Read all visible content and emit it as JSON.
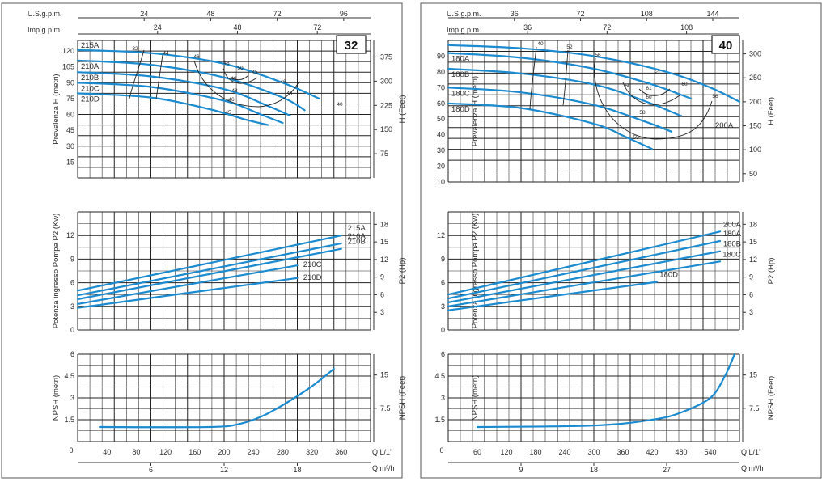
{
  "colors": {
    "curve": "#1a8bd0",
    "grid": "#222222",
    "frame": "#555555"
  },
  "chart_data": [
    {
      "type": "line",
      "panel": "left",
      "model_label": "32",
      "flow_axes": {
        "usgpm": {
          "label": "U.S.g.p.m.",
          "ticks": [
            24,
            48,
            72,
            96
          ]
        },
        "impgpm": {
          "label": "Imp.g.p.m.",
          "ticks": [
            24,
            48,
            72
          ]
        },
        "lmin": {
          "label": "Q  L/1'",
          "ticks": [
            40,
            80,
            120,
            160,
            200,
            240,
            280,
            320,
            360
          ],
          "range": [
            0,
            400
          ]
        },
        "m3h": {
          "label": "Q  m³/h",
          "ticks": [
            6,
            12,
            18
          ]
        }
      },
      "zero_label": "0",
      "head": {
        "ylabel": "Prevalenza H (metri)",
        "ylabel_right": "H (Feet)",
        "yticks": [
          15,
          30,
          45,
          60,
          75,
          90,
          105,
          120
        ],
        "yticks_right": [
          75,
          150,
          225,
          300,
          375
        ],
        "ylim": [
          0,
          130
        ],
        "series": [
          {
            "name": "215A",
            "x": [
              0,
              100,
              200,
              280,
              330
            ],
            "y": [
              121,
              118,
              108,
              90,
              75
            ]
          },
          {
            "name": "210A",
            "x": [
              0,
              100,
              200,
              280,
              310
            ],
            "y": [
              111,
              107,
              95,
              76,
              64
            ]
          },
          {
            "name": "210B",
            "x": [
              0,
              100,
              200,
              260,
              290
            ],
            "y": [
              100,
              96,
              84,
              68,
              59
            ]
          },
          {
            "name": "210C",
            "x": [
              0,
              100,
              200,
              250,
              280
            ],
            "y": [
              90,
              86,
              73,
              60,
              52
            ]
          },
          {
            "name": "210D",
            "x": [
              0,
              100,
              180,
              230,
              260
            ],
            "y": [
              80,
              76,
              65,
              55,
              50
            ]
          }
        ],
        "efficiency_labels": [
          "32",
          "44",
          "46",
          "48",
          "50",
          "49",
          "48",
          "46",
          "45",
          "44",
          "40",
          "46",
          "45"
        ]
      },
      "power": {
        "ylabel": "Potenza ingresso Pompa P2 (Kw)",
        "ylabel_right": "P2 (Hp)",
        "yticks": [
          0,
          3,
          6,
          9,
          12
        ],
        "yticks_right": [
          3,
          6,
          9,
          12,
          15,
          18
        ],
        "ylim": [
          0,
          15
        ],
        "series": [
          {
            "name": "215A",
            "x": [
              0,
              360
            ],
            "y": [
              5.0,
              12.0
            ]
          },
          {
            "name": "210A",
            "x": [
              0,
              360
            ],
            "y": [
              4.4,
              11.0
            ]
          },
          {
            "name": "210B",
            "x": [
              0,
              360
            ],
            "y": [
              3.9,
              10.3
            ]
          },
          {
            "name": "210C",
            "x": [
              0,
              300
            ],
            "y": [
              3.3,
              8.2
            ]
          },
          {
            "name": "210D",
            "x": [
              0,
              300
            ],
            "y": [
              2.8,
              6.6
            ]
          }
        ]
      },
      "npsh": {
        "ylabel": "NPSH (metri)",
        "ylabel_right": "NPSH (Feet)",
        "yticks": [
          1.5,
          3,
          4.5,
          6
        ],
        "yticks_right": [
          7.5,
          15
        ],
        "ylim": [
          0,
          6
        ],
        "series": [
          {
            "name": "NPSH",
            "x": [
              30,
              180,
              220,
              250,
              280,
              320,
              350
            ],
            "y": [
              1.0,
              1.0,
              1.2,
              1.7,
              2.5,
              3.8,
              5.0
            ]
          }
        ]
      }
    },
    {
      "type": "line",
      "panel": "right",
      "model_label": "40",
      "flow_axes": {
        "usgpm": {
          "label": "U.S.g.p.m.",
          "ticks": [
            36,
            72,
            108,
            144
          ]
        },
        "impgpm": {
          "label": "Imp.g.p.m.",
          "ticks": [
            36,
            72,
            108
          ]
        },
        "lmin": {
          "label": "Q  L/1'",
          "ticks": [
            60,
            120,
            180,
            240,
            300,
            360,
            420,
            480,
            540
          ],
          "range": [
            0,
            600
          ]
        },
        "m3h": {
          "label": "Q  m³/h",
          "ticks": [
            9,
            18,
            27
          ]
        }
      },
      "zero_label": "0",
      "head": {
        "ylabel": "Prevalenza H (metri)",
        "ylabel_right": "H (Feet)",
        "yticks": [
          10,
          20,
          30,
          40,
          50,
          60,
          70,
          80,
          90
        ],
        "yticks_right": [
          50,
          100,
          150,
          200,
          250,
          300
        ],
        "ylim": [
          10,
          100
        ],
        "series": [
          {
            "name": "200A",
            "x": [
              0,
              150,
              300,
              450,
              540,
              600
            ],
            "y": [
              97,
              95,
              90,
              80,
              70,
              61
            ]
          },
          {
            "name": "180A",
            "x": [
              0,
              150,
              300,
              420,
              500
            ],
            "y": [
              92,
              89,
              82,
              72,
              63
            ]
          },
          {
            "name": "180B",
            "x": [
              0,
              150,
              300,
              400,
              480
            ],
            "y": [
              82,
              79,
              72,
              62,
              52
            ]
          },
          {
            "name": "180C",
            "x": [
              0,
              150,
              300,
              400,
              460
            ],
            "y": [
              70,
              67,
              59,
              49,
              42
            ]
          },
          {
            "name": "180D",
            "x": [
              0,
              150,
              300,
              370,
              420
            ],
            "y": [
              60,
              57,
              47,
              38,
              31
            ]
          }
        ],
        "efficiency_labels": [
          "40",
          "52",
          "56",
          "60",
          "62",
          "61",
          "60",
          "60",
          "56",
          "58",
          "55"
        ]
      },
      "power": {
        "ylabel": "Potenza ingresso Pompa P2 (Kw)",
        "ylabel_right": "P2 (Hp)",
        "yticks": [
          0,
          3,
          6,
          9,
          12
        ],
        "yticks_right": [
          3,
          6,
          9,
          12,
          15,
          18
        ],
        "ylim": [
          0,
          15
        ],
        "series": [
          {
            "name": "200A",
            "x": [
              0,
              560
            ],
            "y": [
              4.5,
              12.5
            ]
          },
          {
            "name": "180A",
            "x": [
              0,
              560
            ],
            "y": [
              4.0,
              11.3
            ]
          },
          {
            "name": "180B",
            "x": [
              0,
              560
            ],
            "y": [
              3.5,
              10.0
            ]
          },
          {
            "name": "180C",
            "x": [
              0,
              560
            ],
            "y": [
              3.0,
              8.7
            ]
          },
          {
            "name": "180D",
            "x": [
              0,
              430
            ],
            "y": [
              2.5,
              6.1
            ]
          }
        ]
      },
      "npsh": {
        "ylabel": "NPSH (metri)",
        "ylabel_right": "NPSH (Feet)",
        "yticks": [
          1.5,
          3,
          4.5,
          6
        ],
        "yticks_right": [
          7.5,
          15
        ],
        "ylim": [
          0,
          6
        ],
        "series": [
          {
            "name": "NPSH",
            "x": [
              60,
              300,
              420,
              480,
              540,
              570,
              590
            ],
            "y": [
              1.0,
              1.1,
              1.5,
              2.0,
              3.0,
              4.5,
              6.0
            ]
          }
        ]
      }
    }
  ]
}
